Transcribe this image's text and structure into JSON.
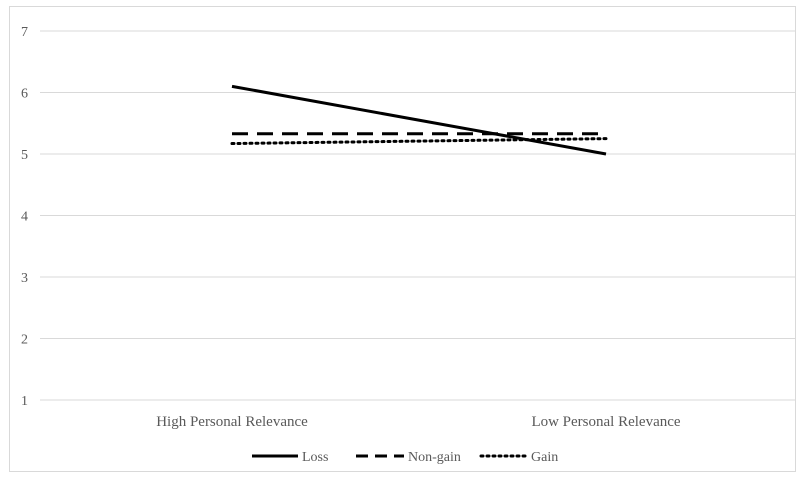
{
  "chart_data": {
    "type": "line",
    "title": "",
    "xlabel": "",
    "ylabel": "",
    "categories": [
      "High Personal Relevance",
      "Low Personal Relevance"
    ],
    "ylim": [
      1,
      7
    ],
    "yticks": [
      "1",
      "2",
      "3",
      "4",
      "5",
      "6",
      "7"
    ],
    "grid": true,
    "legend_position": "bottom",
    "series": [
      {
        "name": "Loss",
        "values": [
          6.1,
          5.0
        ],
        "style": "solid",
        "color": "#000000"
      },
      {
        "name": "Non-gain",
        "values": [
          5.33,
          5.33
        ],
        "style": "dashed",
        "color": "#000000"
      },
      {
        "name": "Gain",
        "values": [
          5.17,
          5.25
        ],
        "style": "dotted",
        "color": "#000000"
      }
    ]
  }
}
